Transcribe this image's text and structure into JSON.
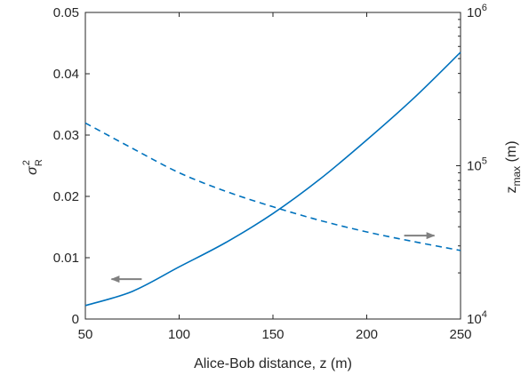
{
  "chart_data": {
    "type": "line",
    "title": "",
    "xlabel": "Alice-Bob distance, z (m)",
    "xlim": [
      50,
      250
    ],
    "x_ticks": [
      "50",
      "100",
      "150",
      "200",
      "250"
    ],
    "y_left": {
      "label_symbol": "σ",
      "label_sup": "2",
      "label_sub": "R",
      "lim": [
        0,
        0.05
      ],
      "ticks": [
        "0",
        "0.01",
        "0.02",
        "0.03",
        "0.04",
        "0.05"
      ],
      "scale": "linear"
    },
    "y_right": {
      "label_main": "z",
      "label_sub": "max",
      "label_unit": " (m)",
      "lim": [
        10000,
        1000000
      ],
      "scale": "log",
      "tick_base": "10",
      "tick_exponents": [
        "4",
        "5",
        "6"
      ]
    },
    "grid": false,
    "legend": "none",
    "series": [
      {
        "axis": "left",
        "style": "solid",
        "color": "#0072BD",
        "x": [
          50,
          75,
          100,
          125,
          150,
          175,
          200,
          225,
          250
        ],
        "y": [
          0.0022,
          0.0045,
          0.0085,
          0.0125,
          0.0172,
          0.0228,
          0.0292,
          0.036,
          0.0435
        ]
      },
      {
        "axis": "right",
        "style": "dashed",
        "color": "#0072BD",
        "x": [
          50,
          75,
          100,
          125,
          150,
          175,
          200,
          225,
          250
        ],
        "y": [
          190000,
          130000,
          90000,
          68000,
          54000,
          44000,
          37000,
          32000,
          28000
        ]
      }
    ],
    "annotations": [
      {
        "type": "arrow",
        "direction": "left",
        "points_to": "left-axis",
        "x": 72,
        "y": 0.0065,
        "color": "#808080"
      },
      {
        "type": "arrow",
        "direction": "right",
        "points_to": "right-axis",
        "x": 228,
        "y": 35000,
        "color": "#808080"
      }
    ]
  }
}
